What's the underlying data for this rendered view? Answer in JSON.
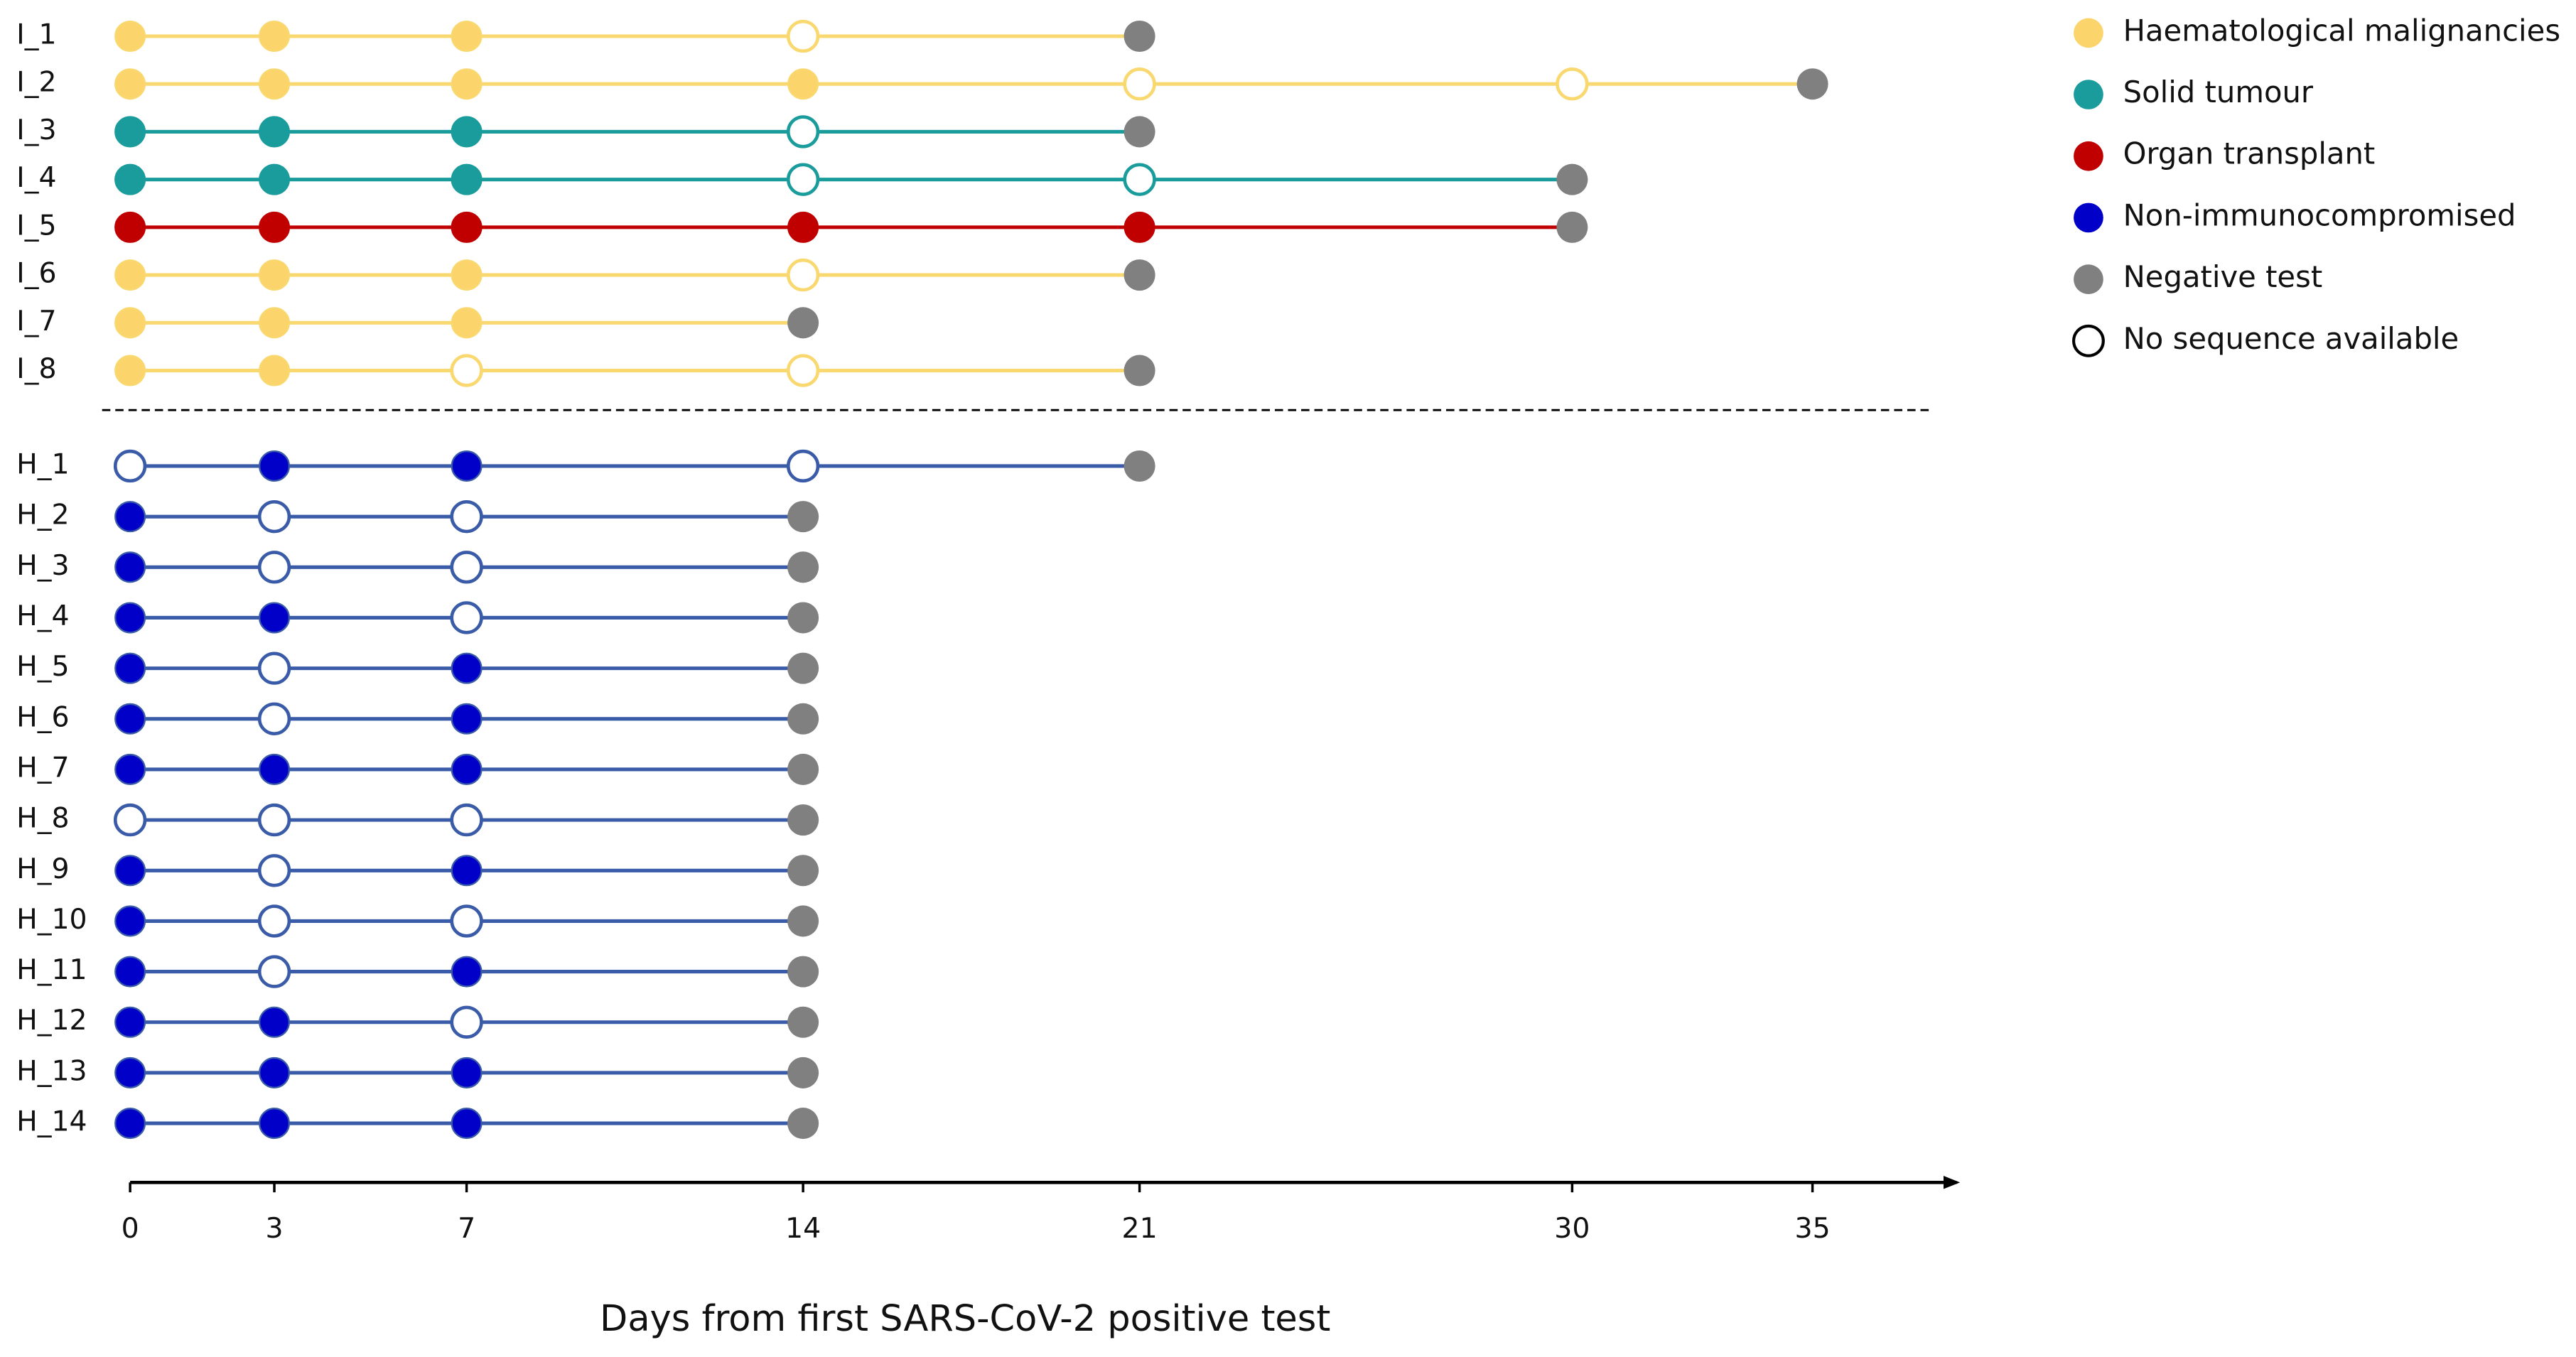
{
  "chart_data": {
    "type": "timeline",
    "xlabel": "Days from first SARS-CoV-2 positive test",
    "xlim": [
      0,
      38
    ],
    "xticks": [
      0,
      3,
      7,
      14,
      21,
      30,
      35
    ],
    "negative_color": "#808080",
    "legend": [
      {
        "name": "Haematological malignancies",
        "color": "#fbd46b"
      },
      {
        "name": "Solid tumour",
        "color": "#1a9c9c"
      },
      {
        "name": "Organ transplant",
        "color": "#c00000"
      },
      {
        "name": "Non-immunocompromised",
        "color": "#0000c8"
      },
      {
        "name": "Negative test",
        "color": "#808080"
      },
      {
        "name": "No sequence available",
        "color": "#ffffff",
        "edgecolor": "#000000"
      }
    ],
    "panels": [
      {
        "rows": [
          {
            "name": "I_1",
            "color": "#fbd46b",
            "line_color": "#f9d870",
            "x": [
              0,
              3,
              7,
              14
            ],
            "sequenced": [
              true,
              true,
              true,
              false
            ],
            "negative_x": 21
          },
          {
            "name": "I_2",
            "color": "#fbd46b",
            "line_color": "#f9d870",
            "x": [
              0,
              3,
              7,
              14,
              21,
              30
            ],
            "sequenced": [
              true,
              true,
              true,
              true,
              false,
              false
            ],
            "negative_x": 35
          },
          {
            "name": "I_3",
            "color": "#1a9c9c",
            "line_color": "#1a9c9c",
            "x": [
              0,
              3,
              7,
              14
            ],
            "sequenced": [
              true,
              true,
              true,
              false
            ],
            "negative_x": 21
          },
          {
            "name": "I_4",
            "color": "#1a9c9c",
            "line_color": "#1a9c9c",
            "x": [
              0,
              3,
              7,
              14,
              21
            ],
            "sequenced": [
              true,
              true,
              true,
              false,
              false
            ],
            "negative_x": 30
          },
          {
            "name": "I_5",
            "color": "#c00000",
            "line_color": "#c00000",
            "x": [
              0,
              3,
              7,
              14,
              21
            ],
            "sequenced": [
              true,
              true,
              true,
              true,
              true
            ],
            "negative_x": 30
          },
          {
            "name": "I_6",
            "color": "#fbd46b",
            "line_color": "#f9d870",
            "x": [
              0,
              3,
              7,
              14
            ],
            "sequenced": [
              true,
              true,
              true,
              false
            ],
            "negative_x": 21
          },
          {
            "name": "I_7",
            "color": "#fbd46b",
            "line_color": "#f9d870",
            "x": [
              0,
              3,
              7
            ],
            "sequenced": [
              true,
              true,
              true
            ],
            "negative_x": 14
          },
          {
            "name": "I_8",
            "color": "#fbd46b",
            "line_color": "#f9d870",
            "x": [
              0,
              3,
              7,
              14
            ],
            "sequenced": [
              true,
              true,
              false,
              false
            ],
            "negative_x": 21
          }
        ]
      },
      {
        "rows": [
          {
            "name": "H_1",
            "color": "#0000c8",
            "line_color": "#3a5ba8",
            "x": [
              0,
              3,
              7,
              14
            ],
            "sequenced": [
              false,
              true,
              true,
              false
            ],
            "negative_x": 21
          },
          {
            "name": "H_2",
            "color": "#0000c8",
            "line_color": "#3a5ba8",
            "x": [
              0,
              3,
              7
            ],
            "sequenced": [
              true,
              false,
              false
            ],
            "negative_x": 14
          },
          {
            "name": "H_3",
            "color": "#0000c8",
            "line_color": "#3a5ba8",
            "x": [
              0,
              3,
              7
            ],
            "sequenced": [
              true,
              false,
              false
            ],
            "negative_x": 14
          },
          {
            "name": "H_4",
            "color": "#0000c8",
            "line_color": "#3a5ba8",
            "x": [
              0,
              3,
              7
            ],
            "sequenced": [
              true,
              true,
              false
            ],
            "negative_x": 14
          },
          {
            "name": "H_5",
            "color": "#0000c8",
            "line_color": "#3a5ba8",
            "x": [
              0,
              3,
              7
            ],
            "sequenced": [
              true,
              false,
              true
            ],
            "negative_x": 14
          },
          {
            "name": "H_6",
            "color": "#0000c8",
            "line_color": "#3a5ba8",
            "x": [
              0,
              3,
              7
            ],
            "sequenced": [
              true,
              false,
              true
            ],
            "negative_x": 14
          },
          {
            "name": "H_7",
            "color": "#0000c8",
            "line_color": "#3a5ba8",
            "x": [
              0,
              3,
              7
            ],
            "sequenced": [
              true,
              true,
              true
            ],
            "negative_x": 14
          },
          {
            "name": "H_8",
            "color": "#0000c8",
            "line_color": "#3a5ba8",
            "x": [
              0,
              3,
              7
            ],
            "sequenced": [
              false,
              false,
              false
            ],
            "negative_x": 14
          },
          {
            "name": "H_9",
            "color": "#0000c8",
            "line_color": "#3a5ba8",
            "x": [
              0,
              3,
              7
            ],
            "sequenced": [
              true,
              false,
              true
            ],
            "negative_x": 14
          },
          {
            "name": "H_10",
            "color": "#0000c8",
            "line_color": "#3a5ba8",
            "x": [
              0,
              3,
              7
            ],
            "sequenced": [
              true,
              false,
              false
            ],
            "negative_x": 14
          },
          {
            "name": "H_11",
            "color": "#0000c8",
            "line_color": "#3a5ba8",
            "x": [
              0,
              3,
              7
            ],
            "sequenced": [
              true,
              false,
              true
            ],
            "negative_x": 14
          },
          {
            "name": "H_12",
            "color": "#0000c8",
            "line_color": "#3a5ba8",
            "x": [
              0,
              3,
              7
            ],
            "sequenced": [
              true,
              true,
              false
            ],
            "negative_x": 14
          },
          {
            "name": "H_13",
            "color": "#0000c8",
            "line_color": "#3a5ba8",
            "x": [
              0,
              3,
              7
            ],
            "sequenced": [
              true,
              true,
              true
            ],
            "negative_x": 14
          },
          {
            "name": "H_14",
            "color": "#0000c8",
            "line_color": "#3a5ba8",
            "x": [
              0,
              3,
              7
            ],
            "sequenced": [
              true,
              true,
              true
            ],
            "negative_x": 14
          }
        ]
      }
    ]
  }
}
